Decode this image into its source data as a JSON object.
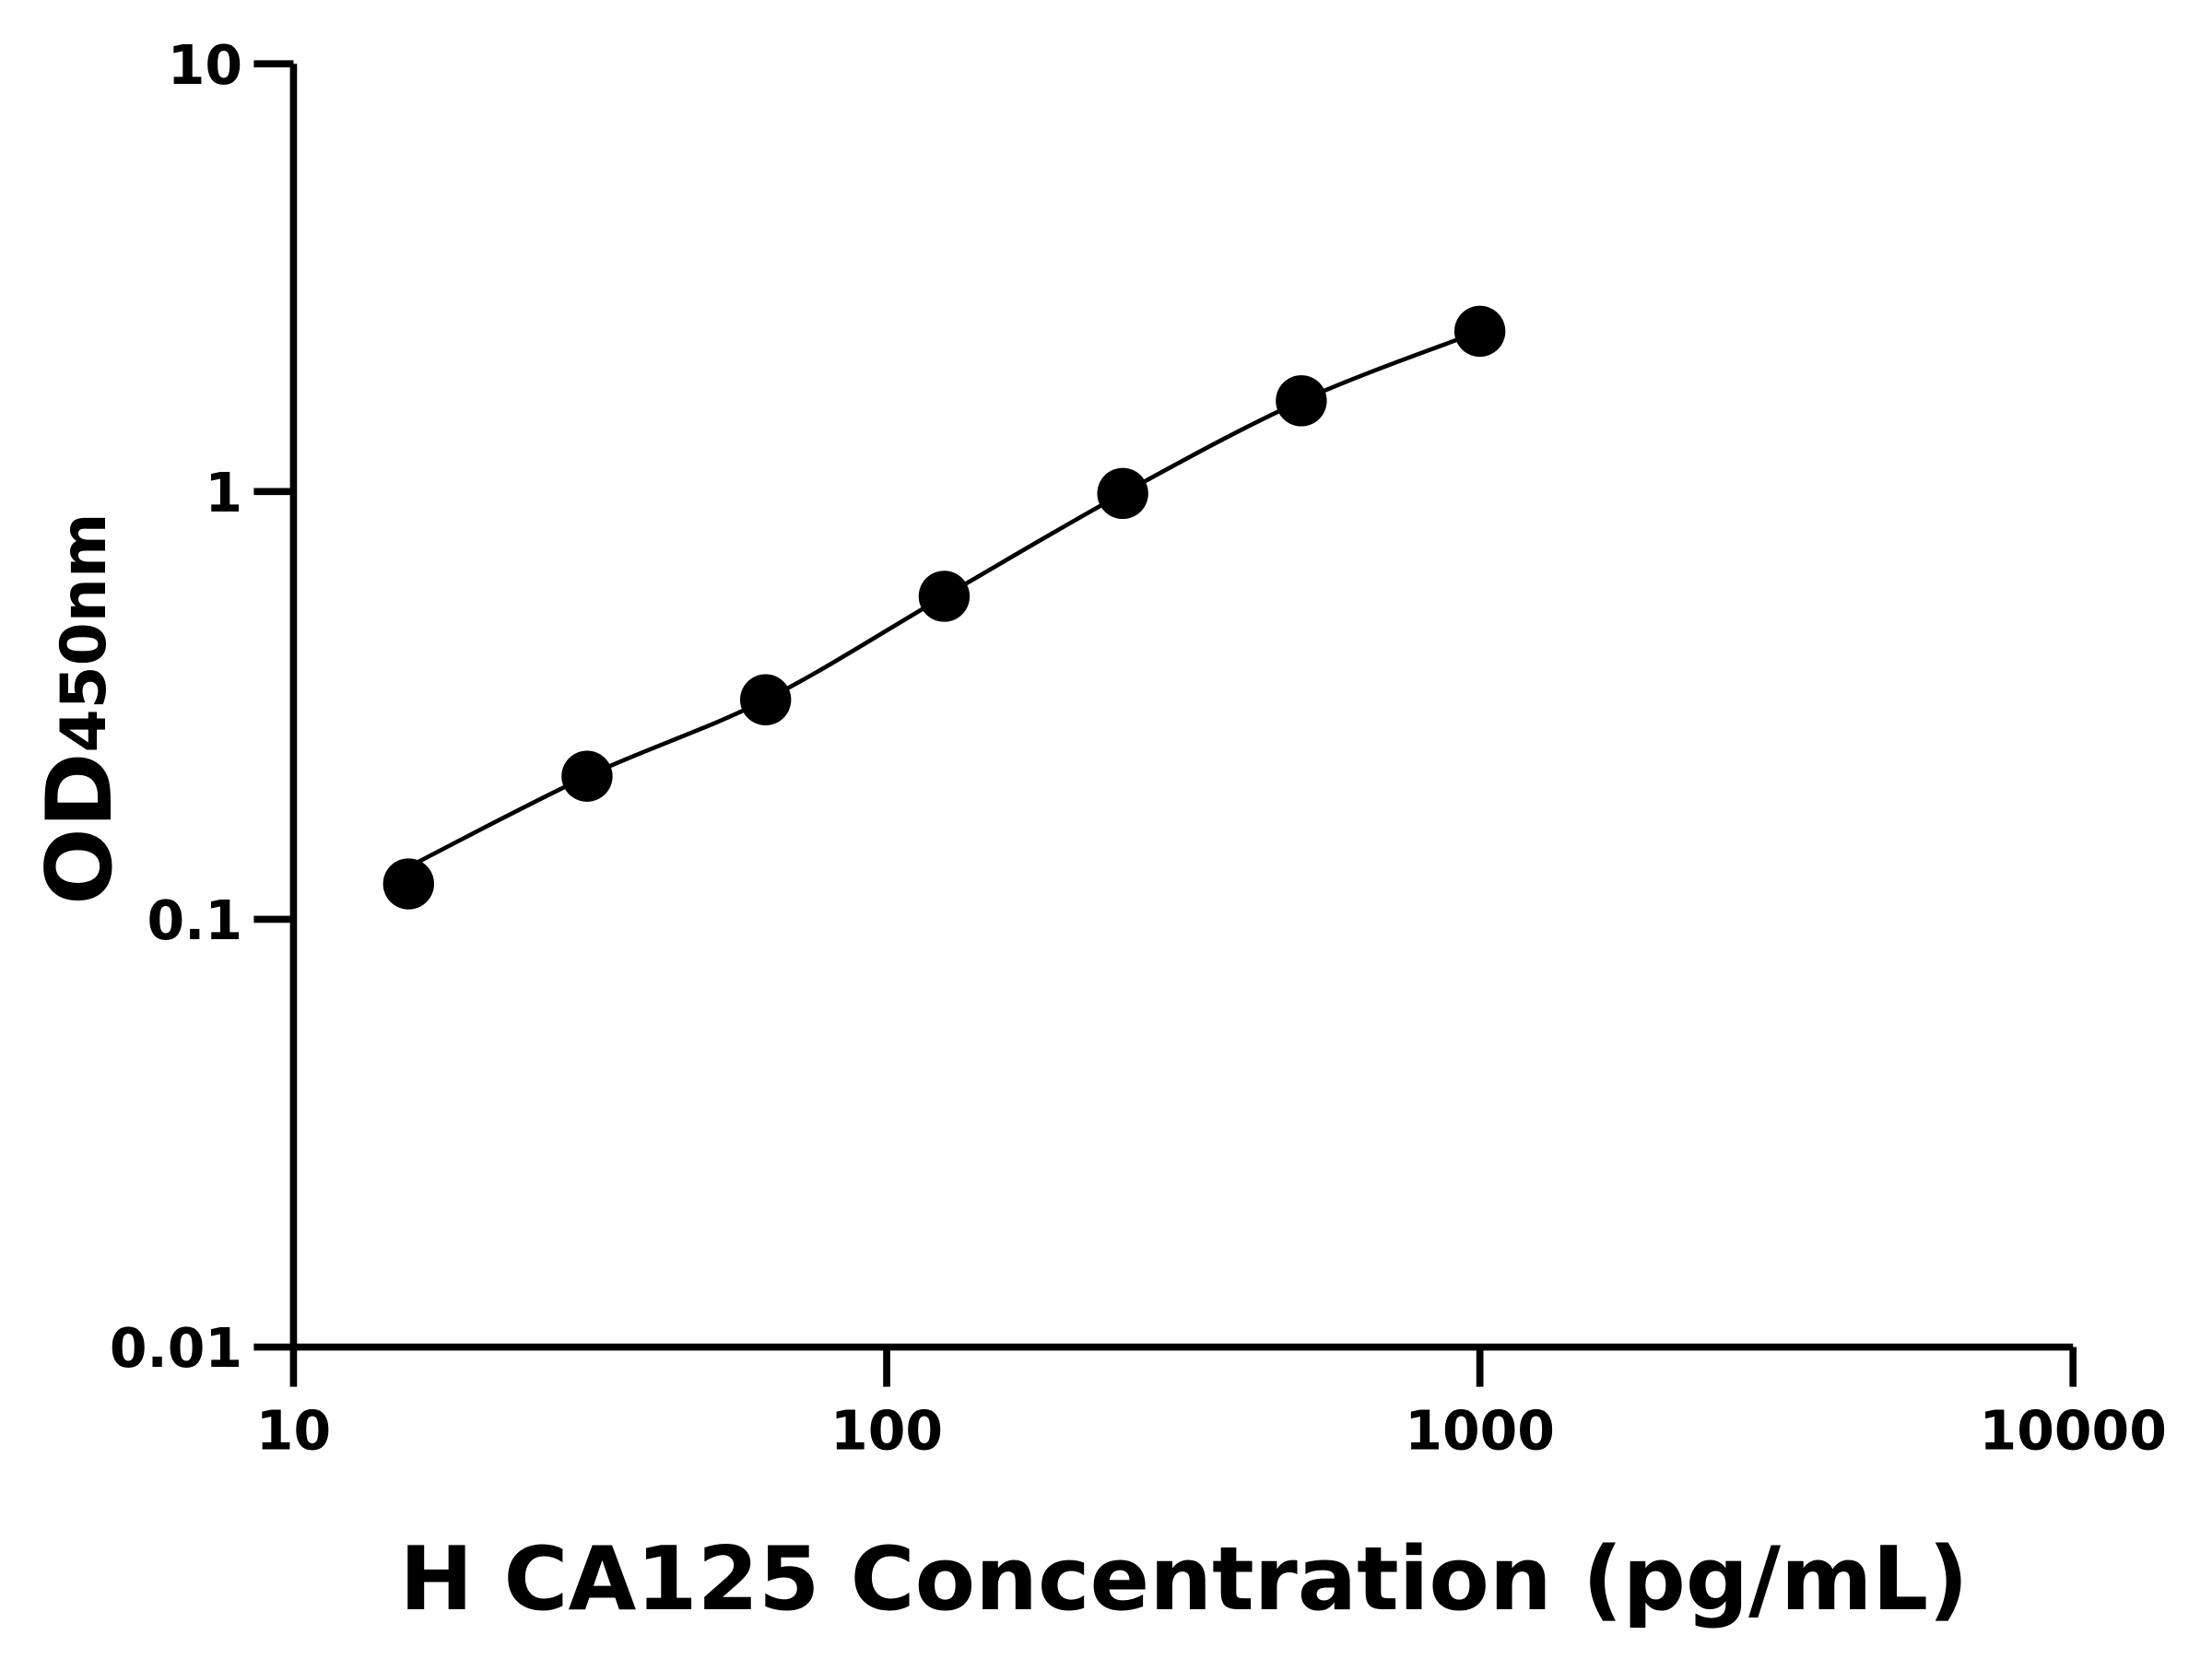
{
  "chart_data": {
    "type": "scatter",
    "title": "",
    "xlabel": "H CA125 Concentration (pg/mL)",
    "ylabel_main": "OD",
    "ylabel_sub": "450nm",
    "x_scale": "log",
    "y_scale": "log",
    "xlim": [
      10,
      10000
    ],
    "ylim": [
      0.01,
      10
    ],
    "x_ticks": [
      "10",
      "100",
      "1000",
      "10000"
    ],
    "y_ticks": [
      "0.01",
      "0.1",
      "1",
      "10"
    ],
    "grid": false,
    "legend": "none",
    "fit_curve": true,
    "colors": {
      "marker": "#000000",
      "line": "#000000"
    },
    "series": [
      {
        "x": [
          15.63,
          31.25,
          62.5,
          125,
          250,
          500,
          1000
        ],
        "y": [
          0.121,
          0.216,
          0.326,
          0.569,
          0.99,
          1.63,
          2.37
        ]
      }
    ]
  }
}
